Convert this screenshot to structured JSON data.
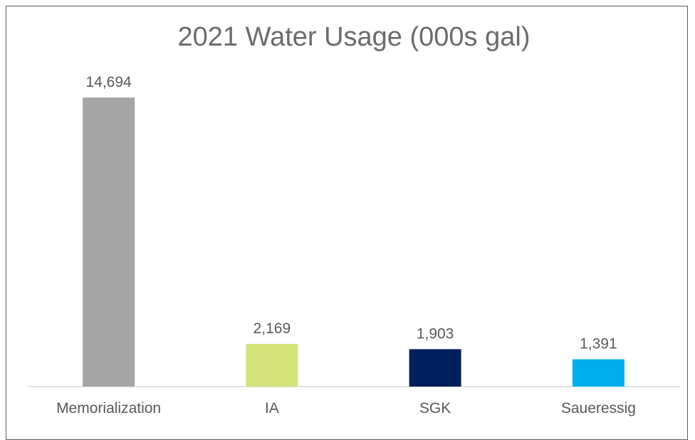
{
  "chart_data": {
    "type": "bar",
    "title": "2021 Water Usage (000s gal)",
    "categories": [
      "Memorialization",
      "IA",
      "SGK",
      "Saueressig"
    ],
    "values": [
      14694,
      2169,
      1903,
      1391
    ],
    "value_labels": [
      "14,694",
      "2,169",
      "1,903",
      "1,391"
    ],
    "colors": [
      "#a5a5a5",
      "#d4e27a",
      "#00205b",
      "#00aeef"
    ],
    "xlabel": "",
    "ylabel": "",
    "ylim": [
      0,
      15500
    ],
    "grid": false,
    "legend": "none"
  }
}
